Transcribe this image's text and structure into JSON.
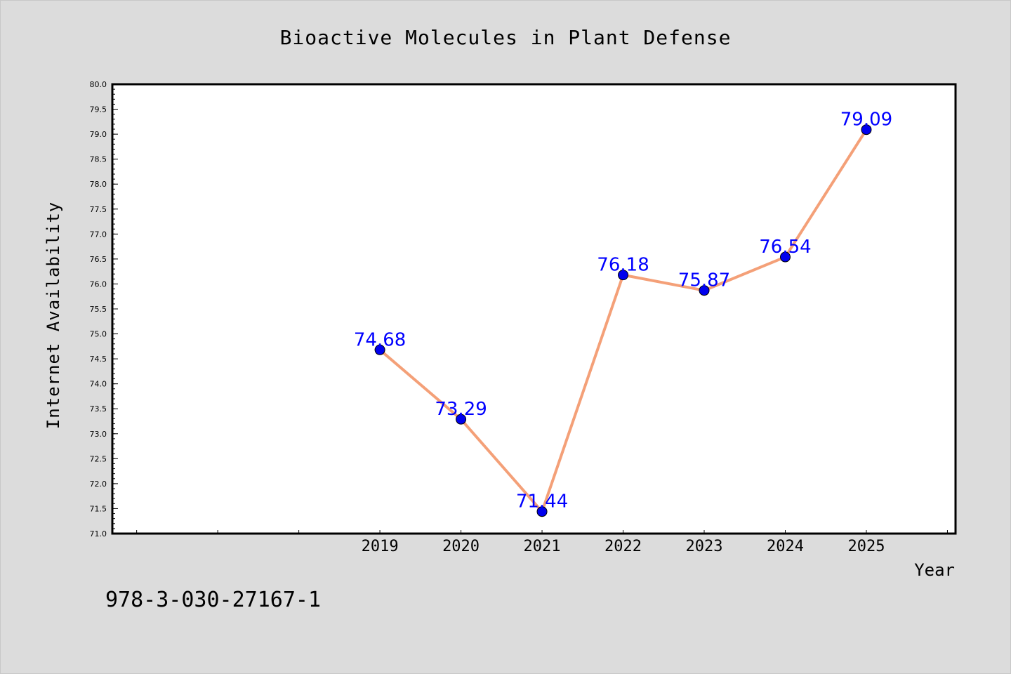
{
  "chart_data": {
    "type": "line",
    "title": "Bioactive Molecules in Plant Defense",
    "xlabel": "Year",
    "ylabel": "Internet Availability",
    "x": [
      2019,
      2020,
      2021,
      2022,
      2023,
      2024,
      2025
    ],
    "x_tick_labels": [
      "2019",
      "2020",
      "2021",
      "2022",
      "2023",
      "2024",
      "2025"
    ],
    "series": [
      {
        "values": [
          74.68,
          73.29,
          71.44,
          76.18,
          75.87,
          76.54,
          79.09
        ],
        "data_labels": [
          "74.68",
          "73.29",
          "71.44",
          "76.18",
          "75.87",
          "76.54",
          "79.09"
        ],
        "line_color": "#f4a078",
        "marker_color": "#0000ee",
        "label_color": "#0000ff"
      }
    ],
    "xlim": [
      2015.7,
      2026.1
    ],
    "ylim": [
      71.0,
      80.0
    ],
    "y_ticks": [
      "71.0",
      "71.5",
      "72.0",
      "72.5",
      "73.0",
      "73.5",
      "74.0",
      "74.5",
      "75.0",
      "75.5",
      "76.0",
      "76.5",
      "77.0",
      "77.5",
      "78.0",
      "78.5",
      "79.0",
      "79.5",
      "80.0"
    ],
    "grid": false,
    "legend": "none",
    "plot_background": "#ffffff",
    "figure_background": "#dcdcdc"
  },
  "footer": {
    "isbn": "978-3-030-27167-1"
  }
}
